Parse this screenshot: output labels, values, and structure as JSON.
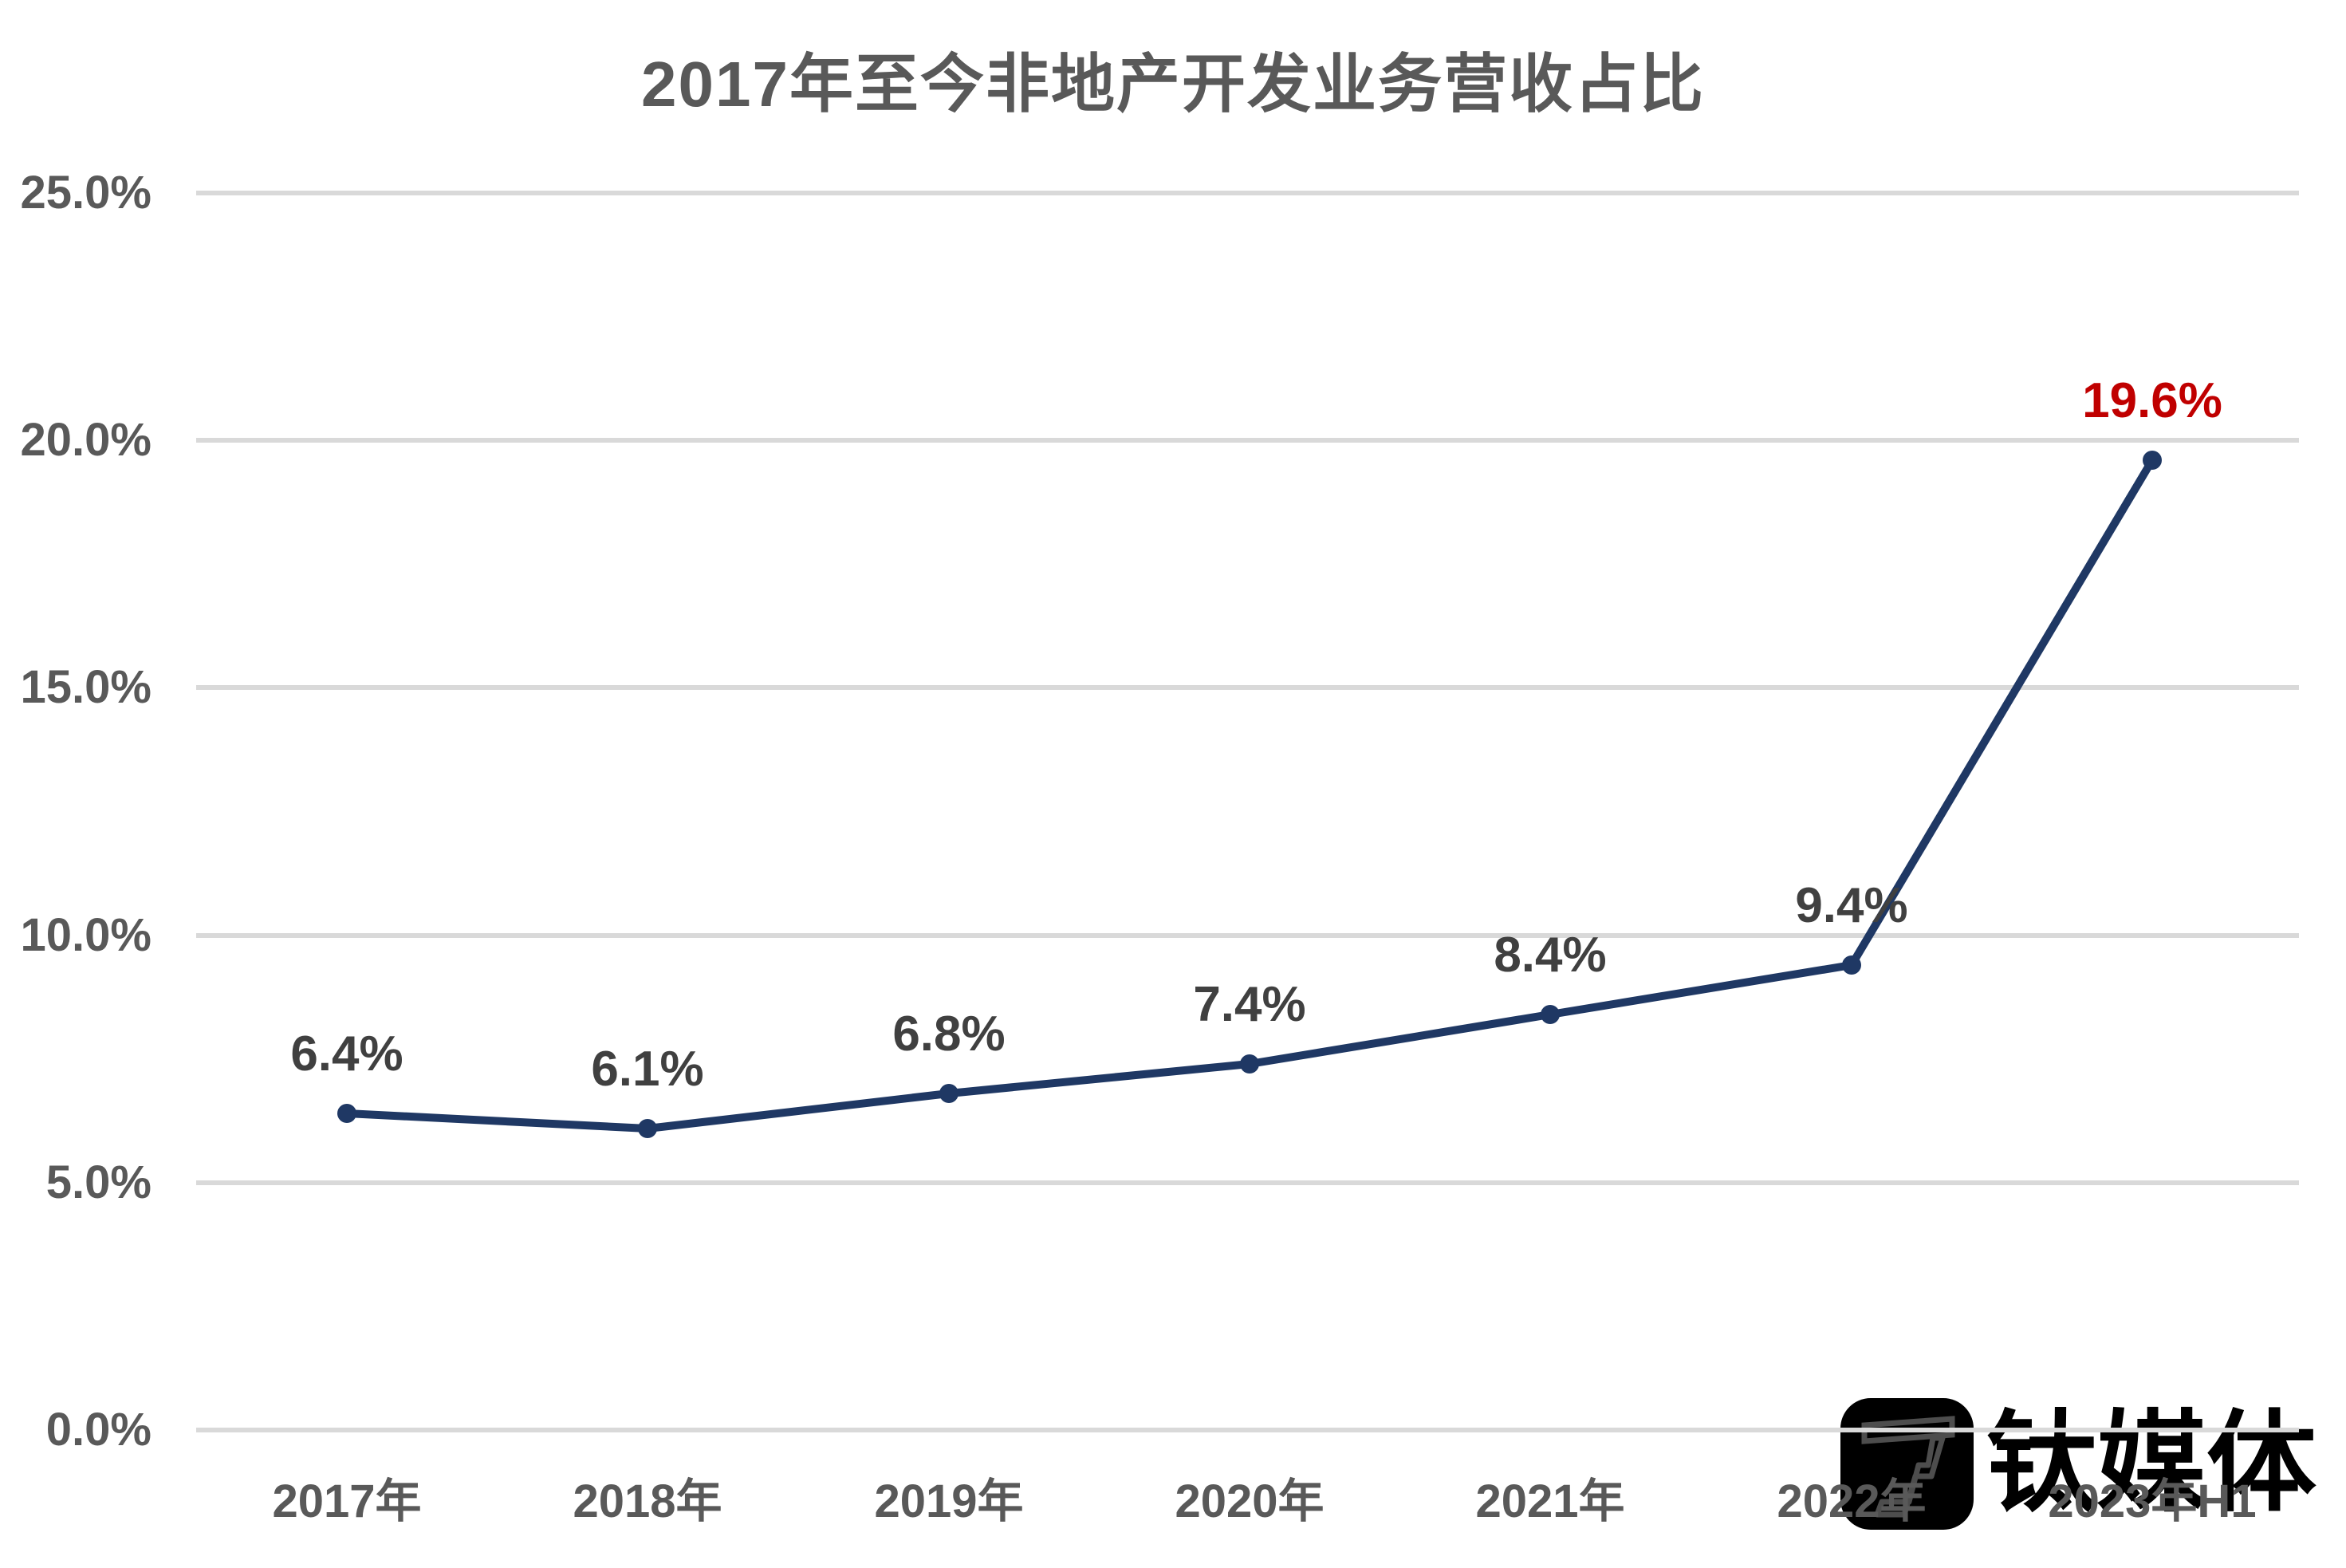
{
  "title": "2017年至今非地产开发业务营收占比",
  "watermark": {
    "text": "钛媒体",
    "logo_icon": "tmtpost-logo"
  },
  "colors": {
    "line": "#1F3864",
    "highlight_label": "#C00000",
    "value_label": "#404040",
    "axis_text": "#595959",
    "gridline": "#D9D9D9",
    "watermark": "#000000",
    "background": "#FFFFFF"
  },
  "chart_data": {
    "type": "line",
    "title": "2017年至今非地产开发业务营收占比",
    "categories": [
      "2017年",
      "2018年",
      "2019年",
      "2020年",
      "2021年",
      "2022年",
      "2023年H1"
    ],
    "values": [
      6.4,
      6.1,
      6.8,
      7.4,
      8.4,
      9.4,
      19.6
    ],
    "data_labels": [
      "6.4%",
      "6.1%",
      "6.8%",
      "7.4%",
      "8.4%",
      "9.4%",
      "19.6%"
    ],
    "highlight_index": 6,
    "xlabel": "",
    "ylabel": "",
    "y_ticks": [
      {
        "label": "0.0%",
        "value": 0
      },
      {
        "label": "5.0%",
        "value": 5
      },
      {
        "label": "10.0%",
        "value": 10
      },
      {
        "label": "15.0%",
        "value": 15
      },
      {
        "label": "20.0%",
        "value": 20
      },
      {
        "label": "25.0%",
        "value": 25
      }
    ],
    "ylim": [
      0,
      25
    ],
    "grid": true,
    "legend": false
  }
}
